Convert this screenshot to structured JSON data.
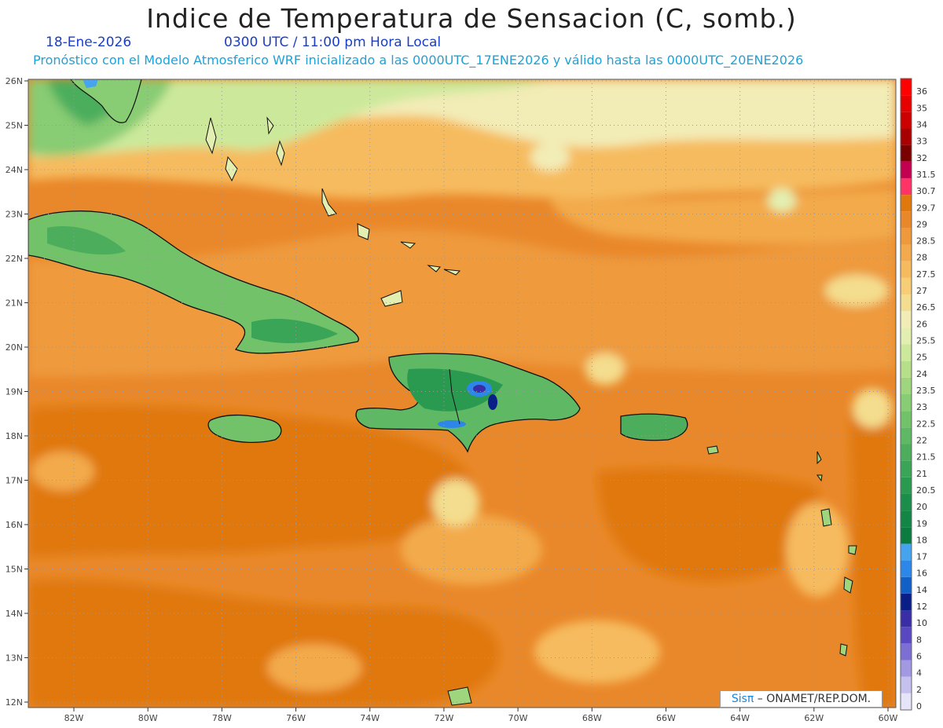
{
  "title": "Indice de Temperatura de Sensacion (C, somb.)",
  "date": "18-Ene-2026",
  "time_label": "0300 UTC / 11:00 pm Hora Local",
  "model_info": "Pronóstico con el Modelo Atmosferico WRF inicializado a las 0000UTC_17ENE2026 y válido hasta las  0000UTC_20ENE2026",
  "lat_labels": [
    "26N",
    "25N",
    "24N",
    "23N",
    "22N",
    "21N",
    "20N",
    "19N",
    "18N",
    "17N",
    "16N",
    "15N",
    "14N",
    "13N",
    "12N"
  ],
  "lon_labels": [
    "82W",
    "80W",
    "78W",
    "76W",
    "74W",
    "72W",
    "70W",
    "68W",
    "66W",
    "64W",
    "62W",
    "60W"
  ],
  "legend_levels": [
    "36",
    "35",
    "34",
    "33",
    "32",
    "31.5",
    "30.7",
    "29.7",
    "29",
    "28.5",
    "28",
    "27.5",
    "27",
    "26.5",
    "26",
    "25.5",
    "25",
    "24",
    "23.5",
    "23",
    "22.5",
    "22",
    "21.5",
    "21",
    "20.5",
    "20",
    "19",
    "18",
    "17",
    "16",
    "14",
    "12",
    "10",
    "8",
    "6",
    "4",
    "2",
    "0"
  ],
  "legend_colors": [
    "#ff0000",
    "#e60000",
    "#cc0000",
    "#a80000",
    "#7a0000",
    "#c2004f",
    "#ff3366",
    "#e0780e",
    "#e9882a",
    "#ee9a3c",
    "#f3aa4c",
    "#f6bb5e",
    "#f7cd75",
    "#f4dd8e",
    "#f2ecb6",
    "#e3efb0",
    "#cce99b",
    "#b5df89",
    "#9fd57d",
    "#88cc73",
    "#72c26a",
    "#5fb864",
    "#4cae5d",
    "#3aa457",
    "#2b9a51",
    "#1c8e4c",
    "#138646",
    "#0b7b3f",
    "#46a3ee",
    "#2d87e8",
    "#1060c8",
    "#0a1e88",
    "#3a2ea6",
    "#5a48c2",
    "#7d6ed4",
    "#a399e2",
    "#c6c0ee",
    "#e6e4f8"
  ],
  "credit": {
    "brand": "Sisπ",
    "text": " – ONAMET/REP.DOM."
  }
}
